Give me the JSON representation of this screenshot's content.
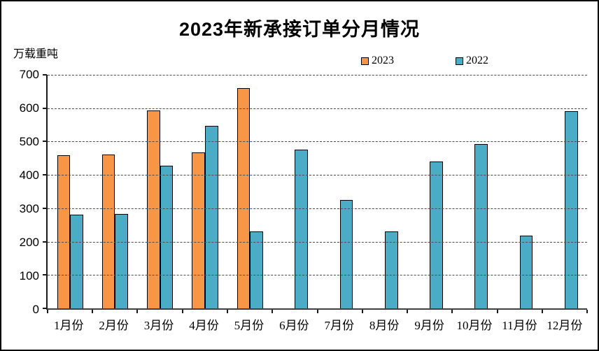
{
  "title": "2023年新承接订单分月情况",
  "y_axis_label": "万载重吨",
  "colors": {
    "series_2023": "#F79646",
    "series_2022": "#4BACC6",
    "bar_border": "#000000",
    "axis": "#1a1a1a",
    "gridline": "#4d4d4d",
    "background": "#ffffff",
    "frame_border": "#000000"
  },
  "chart_data": {
    "type": "bar",
    "title": "2023年新承接订单分月情况",
    "xlabel": "",
    "ylabel": "万载重吨",
    "ylim": [
      0,
      700
    ],
    "yticks": [
      0,
      100,
      200,
      300,
      400,
      500,
      600,
      700
    ],
    "grid": true,
    "legend_position": "top-center",
    "categories": [
      "1月份",
      "2月份",
      "3月份",
      "4月份",
      "5月份",
      "6月份",
      "7月份",
      "8月份",
      "9月份",
      "10月份",
      "11月份",
      "12月份"
    ],
    "series": [
      {
        "name": "2023",
        "color": "#F79646",
        "values": [
          460,
          462,
          593,
          467,
          660,
          null,
          null,
          null,
          null,
          null,
          null,
          null
        ]
      },
      {
        "name": "2022",
        "color": "#4BACC6",
        "values": [
          281,
          282,
          428,
          546,
          230,
          476,
          325,
          231,
          440,
          493,
          219,
          591
        ]
      }
    ]
  }
}
